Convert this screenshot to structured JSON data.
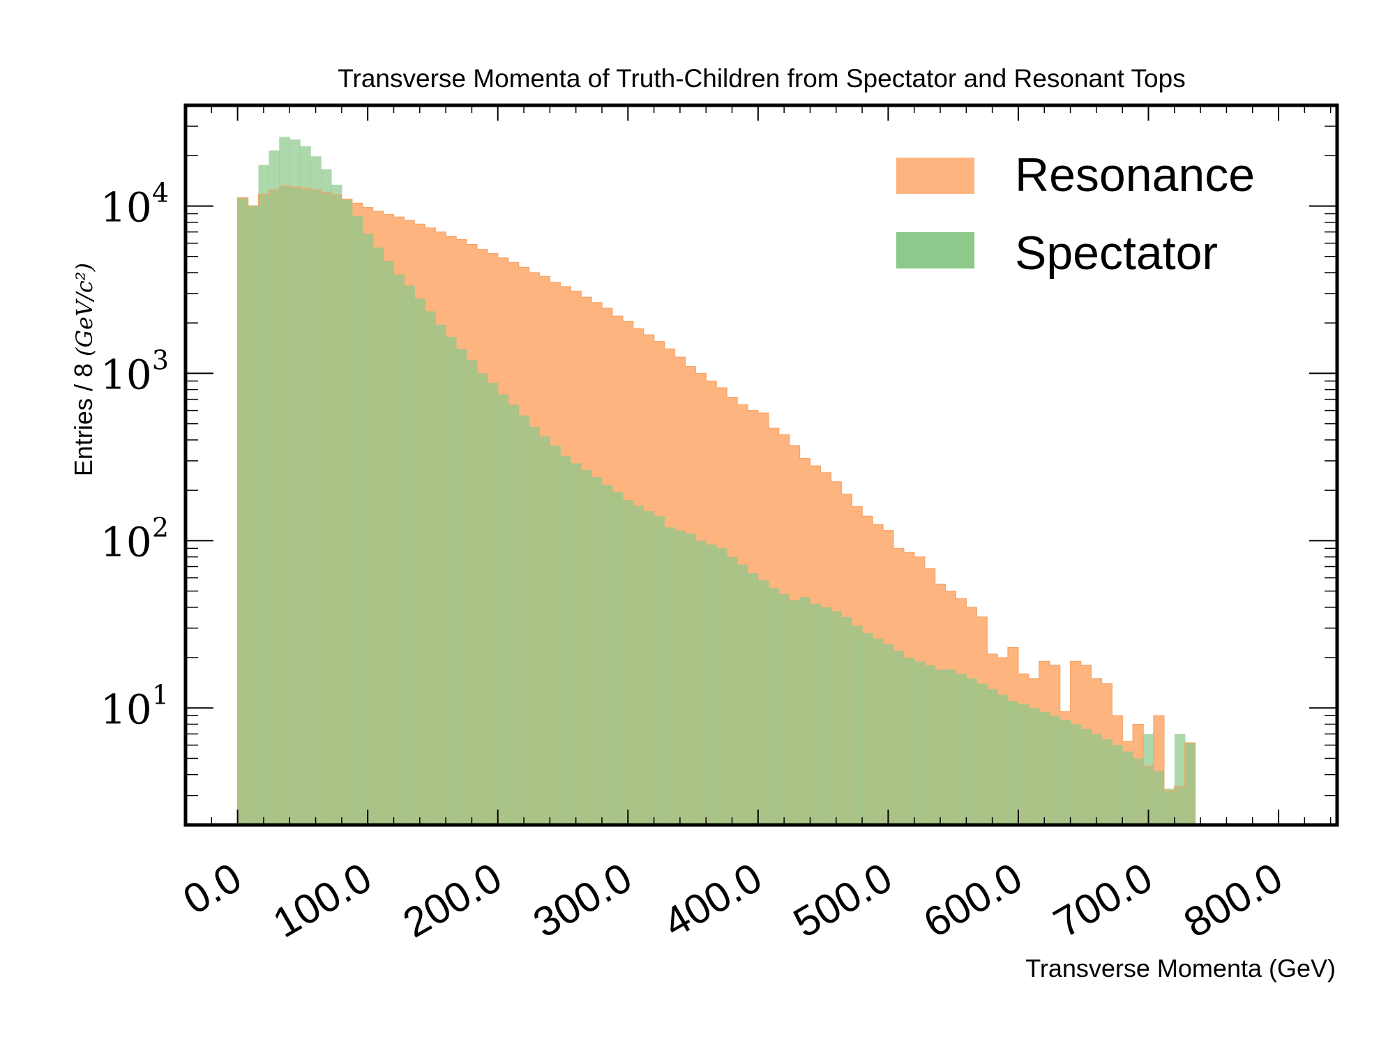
{
  "chart_data": {
    "type": "histogram",
    "title": "Transverse Momenta of Truth-Children from Spectator and Resonant Tops",
    "xlabel": "Transverse Momenta (GeV)",
    "ylabel_prefix": "Entries / 8 ",
    "ylabel_unit": "(GeV/c²)",
    "y_scale": "log",
    "ylim": [
      2,
      40000
    ],
    "xlim": [
      -40,
      845
    ],
    "bin_start": 0,
    "bin_width": 8,
    "x_ticks": [
      "0.0",
      "100.0",
      "200.0",
      "300.0",
      "400.0",
      "500.0",
      "600.0",
      "700.0",
      "800.0"
    ],
    "x_tick_values": [
      0,
      100,
      200,
      300,
      400,
      500,
      600,
      700,
      800
    ],
    "y_ticks": [
      {
        "value": 10,
        "label_base": "10",
        "label_exp": "1"
      },
      {
        "value": 100,
        "label_base": "10",
        "label_exp": "2"
      },
      {
        "value": 1000,
        "label_base": "10",
        "label_exp": "3"
      },
      {
        "value": 10000,
        "label_base": "10",
        "label_exp": "4"
      }
    ],
    "legend_position": "top-right",
    "series": [
      {
        "name": "Resonance",
        "color": "#fdb47e",
        "values": [
          11200,
          10000,
          11800,
          12500,
          13200,
          13000,
          12800,
          12500,
          12100,
          11700,
          11000,
          10400,
          9800,
          9300,
          8900,
          8600,
          8200,
          7800,
          7400,
          7000,
          6600,
          6300,
          5900,
          5500,
          5200,
          4900,
          4600,
          4300,
          4000,
          3800,
          3500,
          3300,
          3100,
          2850,
          2650,
          2450,
          2200,
          2050,
          1850,
          1700,
          1550,
          1400,
          1250,
          1100,
          1000,
          900,
          820,
          720,
          650,
          600,
          580,
          470,
          430,
          370,
          310,
          280,
          255,
          225,
          190,
          160,
          140,
          125,
          115,
          90,
          85,
          80,
          68,
          55,
          50,
          45,
          40,
          35,
          21,
          20,
          23,
          16,
          15,
          19,
          18,
          9.5,
          19,
          18,
          15,
          14,
          9,
          6.3,
          8,
          4.5,
          9,
          3.2,
          3.4,
          6.2
        ],
        "legend_label": "Resonance"
      },
      {
        "name": "Spectator",
        "color": "#8cc98a",
        "values": [
          11100,
          10100,
          17600,
          21500,
          25900,
          25000,
          22800,
          19800,
          16600,
          13400,
          10900,
          8700,
          6850,
          5650,
          4700,
          3900,
          3350,
          2800,
          2350,
          1950,
          1650,
          1400,
          1200,
          1000,
          880,
          750,
          650,
          560,
          480,
          420,
          370,
          320,
          290,
          265,
          240,
          215,
          195,
          175,
          162,
          150,
          140,
          120,
          115,
          110,
          100,
          95,
          90,
          80,
          72,
          64,
          58,
          52,
          48,
          44,
          46,
          42,
          40,
          38,
          35,
          31,
          28,
          26,
          24,
          22,
          20,
          19,
          18,
          17,
          17,
          16,
          15,
          14,
          13,
          12,
          11,
          10.5,
          10,
          9.5,
          9,
          8.5,
          8,
          7.5,
          7,
          6.5,
          6,
          5.5,
          5,
          7,
          4.2,
          3.3,
          7,
          6.2
        ],
        "legend_label": "Spectator"
      }
    ]
  }
}
